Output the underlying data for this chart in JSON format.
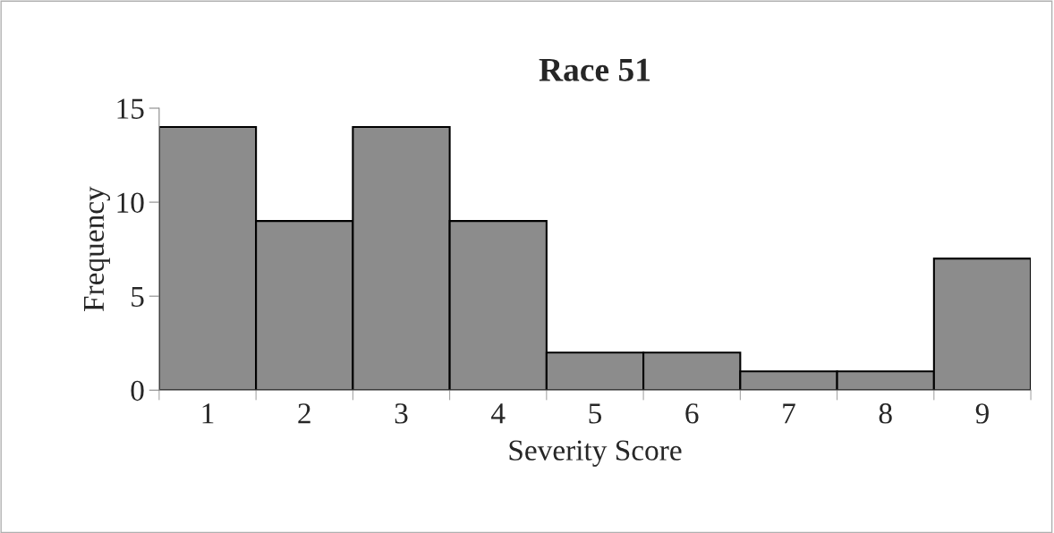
{
  "chart_data": {
    "type": "bar",
    "title": "Race 51",
    "xlabel": "Severity Score",
    "ylabel": "Frequency",
    "categories": [
      "1",
      "2",
      "3",
      "4",
      "5",
      "6",
      "7",
      "8",
      "9"
    ],
    "values": [
      14,
      9,
      14,
      9,
      2,
      2,
      1,
      1,
      7
    ],
    "color": "#8c8c8c",
    "ylim": [
      0,
      15
    ],
    "yticks": [
      0,
      5,
      10,
      15
    ],
    "grid": false,
    "legend": false
  }
}
